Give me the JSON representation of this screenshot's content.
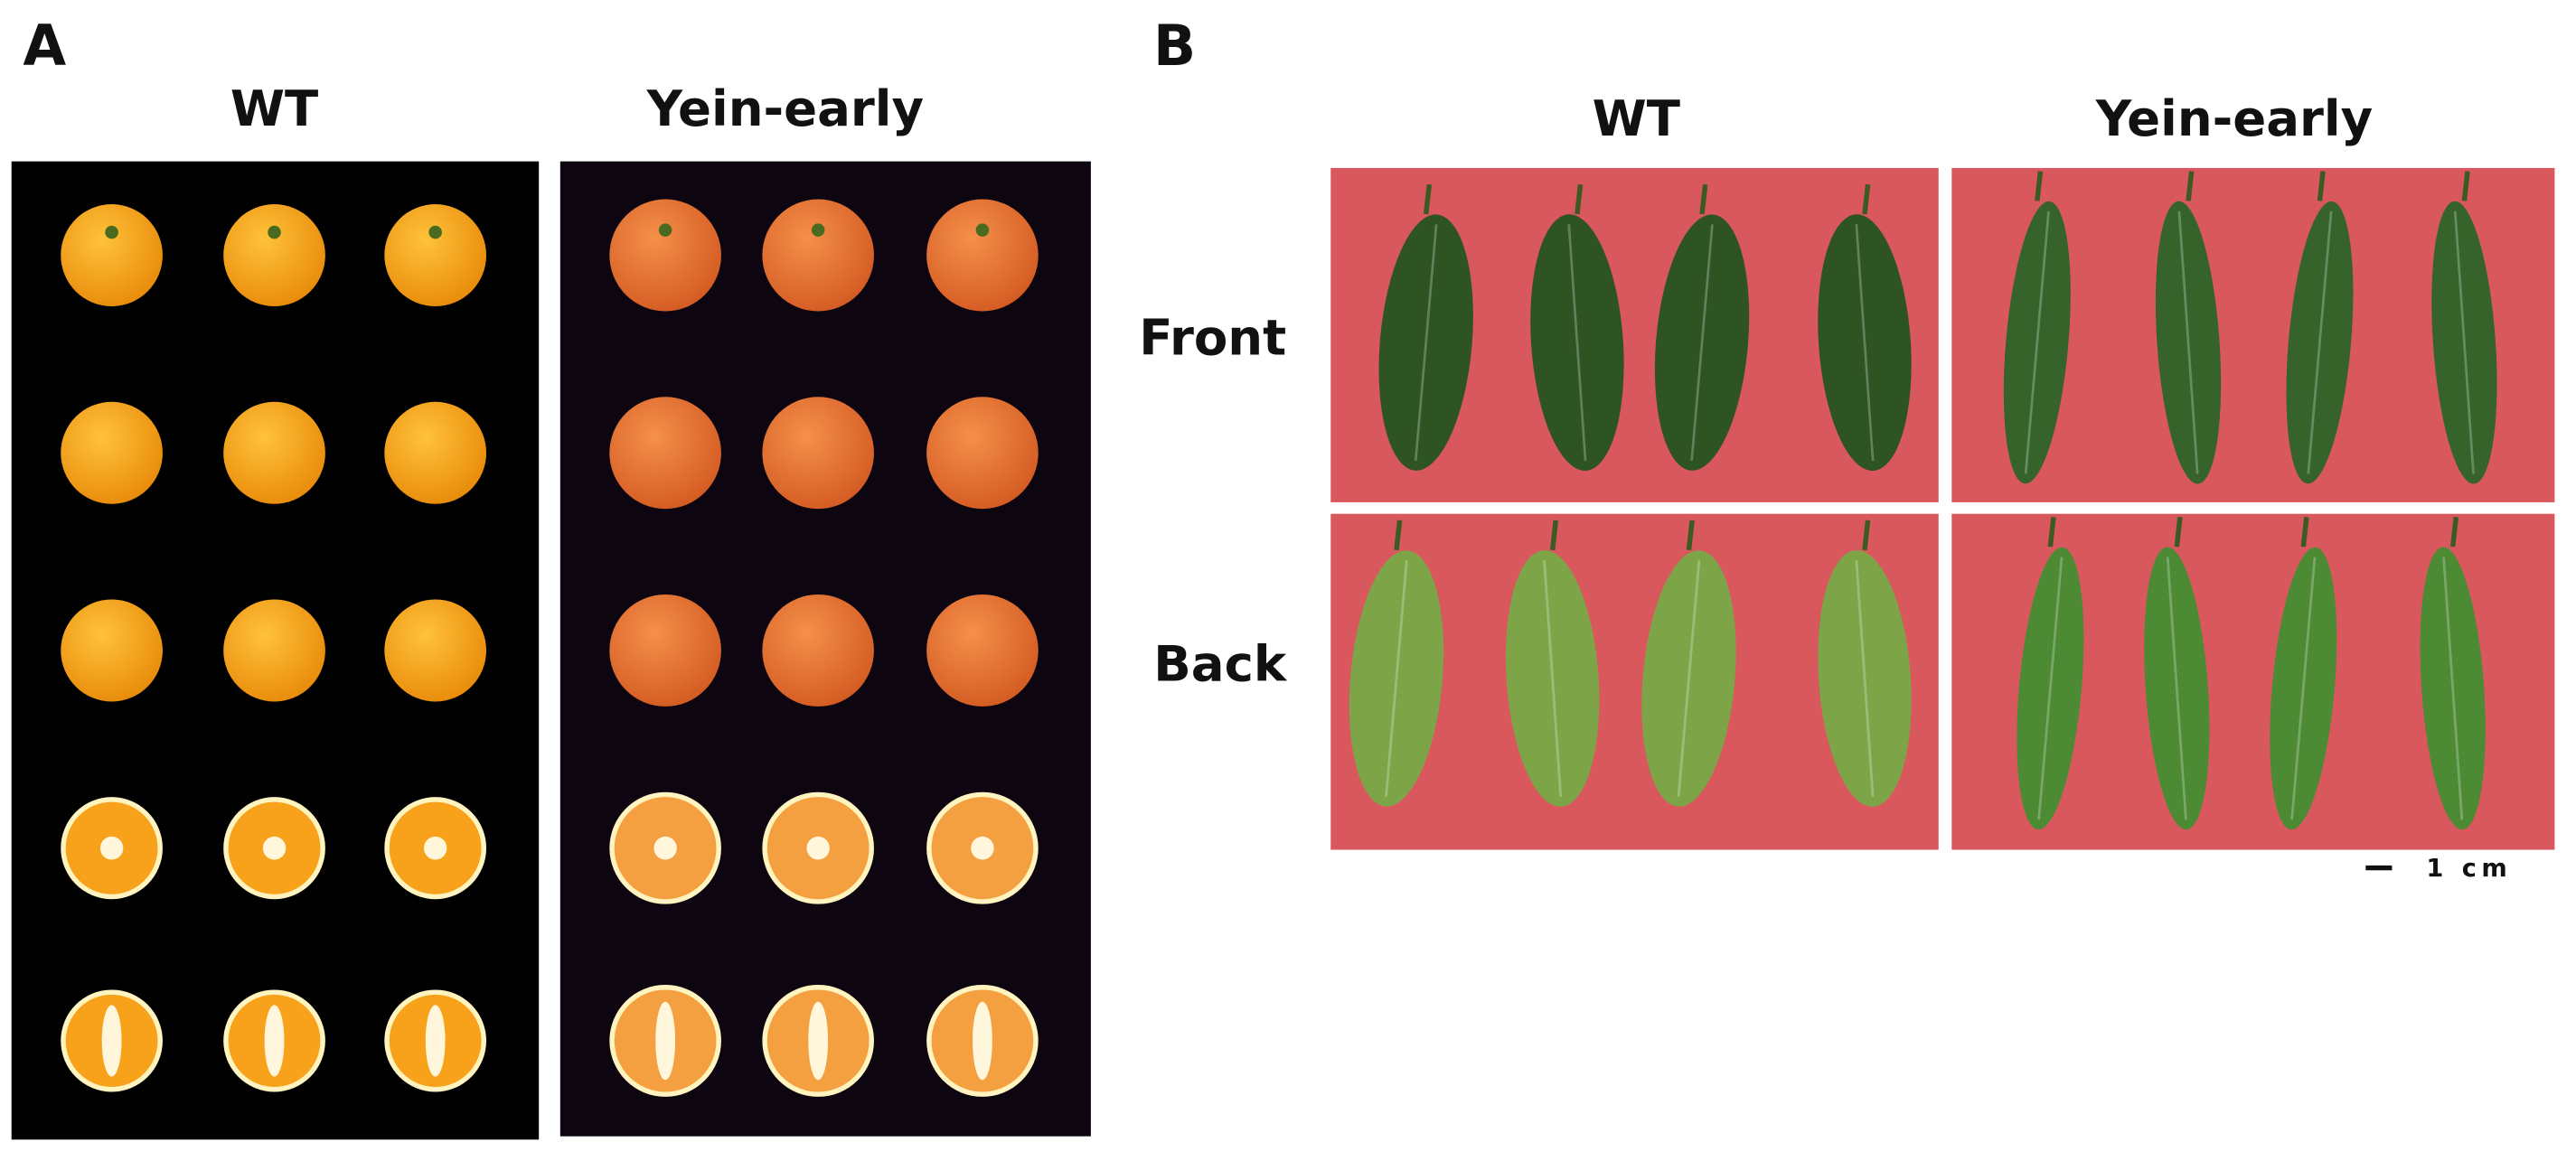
{
  "panel_a": {
    "label": "A",
    "columns": [
      "WT",
      "Yein-early"
    ]
  },
  "panel_b": {
    "label": "B",
    "columns": [
      "WT",
      "Yein-early"
    ],
    "rows": [
      "Front",
      "Back"
    ],
    "scale_bar": "1 cm"
  }
}
